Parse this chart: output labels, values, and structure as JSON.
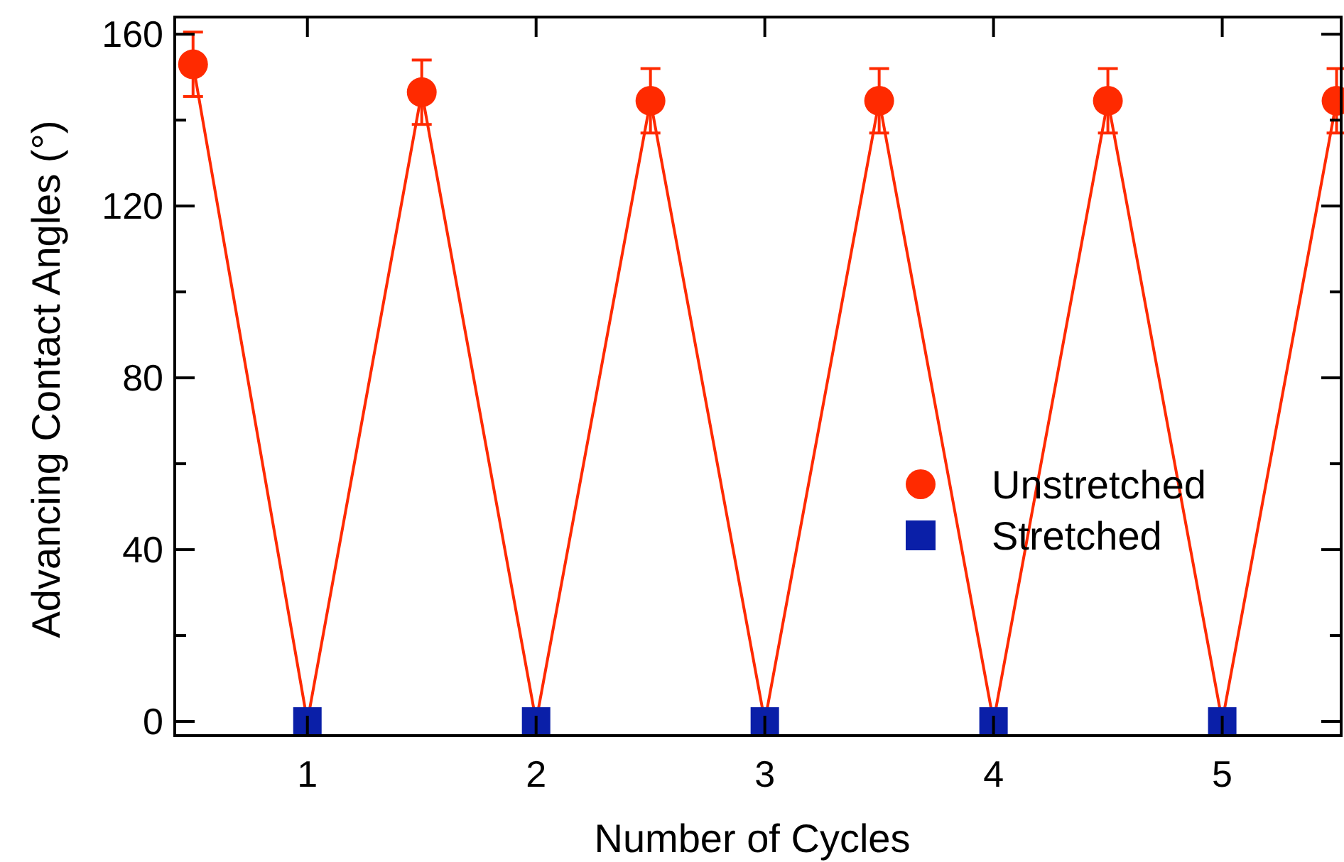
{
  "chart_data": {
    "type": "scatter",
    "xlabel": "Number of Cycles",
    "ylabel": "Advancing Contact Angles (°)",
    "xlim": [
      0.42,
      5.52
    ],
    "xticks": [
      1,
      2,
      3,
      4,
      5
    ],
    "ylim": [
      -3.3,
      164
    ],
    "yticks": [
      0,
      {
        "value": 20,
        "label": null
      },
      40,
      {
        "value": 60,
        "label": null
      },
      80,
      {
        "value": 100,
        "label": null
      },
      120,
      {
        "value": 140,
        "label": null
      },
      160
    ],
    "legend": "right",
    "grid": false,
    "series": [
      {
        "type": "line",
        "color": "#ff2a00",
        "marker": "none",
        "line_style": "solid",
        "x": [
          0.5,
          1,
          1.5,
          2,
          2.5,
          3,
          3.5,
          4,
          4.5,
          5,
          5.5
        ],
        "values": [
          153,
          0,
          146.5,
          0,
          144.5,
          0,
          144.5,
          0,
          144.5,
          0,
          144.5
        ]
      },
      {
        "name": "Unstretched",
        "color": "#ff2a00",
        "marker": "circle",
        "x": [
          0.5,
          1.5,
          2.5,
          3.5,
          4.5,
          5.5
        ],
        "values": [
          153,
          146.5,
          144.5,
          144.5,
          144.5,
          144.5
        ],
        "errors": [
          7.5,
          7.5,
          7.5,
          7.5,
          7.5,
          7.5
        ]
      },
      {
        "name": "Stretched",
        "color": "#0a1fa8",
        "marker": "square",
        "x": [
          1,
          2,
          3,
          4,
          5
        ],
        "values": [
          0,
          0,
          0,
          0,
          0
        ]
      }
    ]
  }
}
